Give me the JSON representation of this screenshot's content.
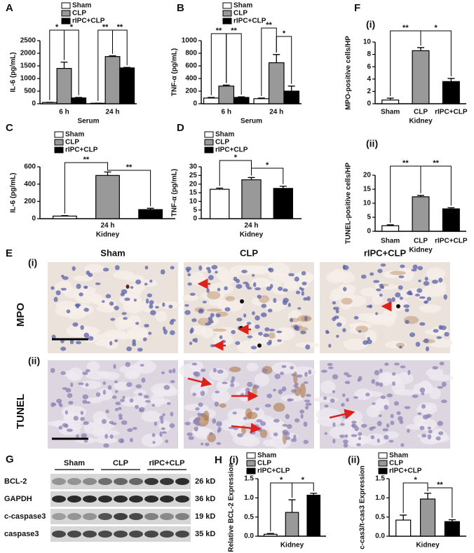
{
  "chart_data": [
    {
      "type": "bar",
      "panel": "A",
      "y_label": "IL-6 (pg/mL)",
      "x_label": "Serum",
      "categories": [
        "6 h",
        "24 h"
      ],
      "series": [
        {
          "name": "Sham",
          "color": "#ffffff",
          "values": [
            50,
            20
          ],
          "errors": [
            10,
            5
          ]
        },
        {
          "name": "CLP",
          "color": "#999999",
          "values": [
            1400,
            1870
          ],
          "errors": [
            250,
            30
          ]
        },
        {
          "name": "rIPC+CLP",
          "color": "#000000",
          "values": [
            230,
            1420
          ],
          "errors": [
            20,
            20
          ]
        }
      ],
      "ylim": [
        0,
        2500
      ],
      "yticks": [
        0,
        500,
        1000,
        1500,
        2000,
        2500
      ],
      "annotations": [
        "*",
        "*",
        "**",
        "**"
      ]
    },
    {
      "type": "bar",
      "panel": "B",
      "y_label": "TNF-α (pg/mL)",
      "x_label": "Serum",
      "categories": [
        "6 h",
        "24 h"
      ],
      "series": [
        {
          "name": "Sham",
          "color": "#ffffff",
          "values": [
            90,
            80
          ],
          "errors": [
            10,
            10
          ]
        },
        {
          "name": "CLP",
          "color": "#999999",
          "values": [
            280,
            650
          ],
          "errors": [
            15,
            130
          ]
        },
        {
          "name": "rIPC+CLP",
          "color": "#000000",
          "values": [
            100,
            200
          ],
          "errors": [
            10,
            80
          ]
        }
      ],
      "ylim": [
        0,
        1000
      ],
      "yticks": [
        0,
        200,
        400,
        600,
        800,
        1000
      ],
      "annotations": [
        "**",
        "**",
        "**",
        "*"
      ]
    },
    {
      "type": "bar",
      "panel": "C",
      "y_label": "IL-6 (pg/mL)",
      "x_label": "Kidney",
      "categories": [
        "24 h"
      ],
      "series": [
        {
          "name": "Sham",
          "color": "#ffffff",
          "values": [
            30
          ],
          "errors": [
            5
          ]
        },
        {
          "name": "CLP",
          "color": "#999999",
          "values": [
            500
          ],
          "errors": [
            40
          ]
        },
        {
          "name": "rIPC+CLP",
          "color": "#000000",
          "values": [
            105
          ],
          "errors": [
            15
          ]
        }
      ],
      "ylim": [
        0,
        600
      ],
      "yticks": [
        0,
        200,
        400,
        600
      ],
      "annotations": [
        "**",
        "**"
      ]
    },
    {
      "type": "bar",
      "panel": "D",
      "y_label": "TNF-α (pg/mL)",
      "x_label": "Kidney",
      "categories": [
        "24 h"
      ],
      "series": [
        {
          "name": "Sham",
          "color": "#ffffff",
          "values": [
            17
          ],
          "errors": [
            0.7
          ]
        },
        {
          "name": "CLP",
          "color": "#999999",
          "values": [
            22.5
          ],
          "errors": [
            1.3
          ]
        },
        {
          "name": "rIPC+CLP",
          "color": "#000000",
          "values": [
            17.5
          ],
          "errors": [
            1.3
          ]
        }
      ],
      "ylim": [
        0,
        30
      ],
      "yticks": [
        0,
        5,
        10,
        15,
        20,
        25,
        30
      ],
      "annotations": [
        "*",
        "*"
      ]
    },
    {
      "type": "bar",
      "panel": "F",
      "subpanel": "(i)",
      "y_label": "MPO-positive cells/HP",
      "x_label": "Kidney",
      "categories": [
        "Sham",
        "CLP",
        "rIPC+CLP"
      ],
      "values": [
        0.6,
        8.6,
        3.6
      ],
      "errors": [
        0.3,
        0.5,
        0.5
      ],
      "colors": [
        "#ffffff",
        "#999999",
        "#000000"
      ],
      "ylim": [
        0,
        10
      ],
      "yticks": [
        0,
        2,
        4,
        6,
        8,
        10
      ],
      "annotations": [
        "**",
        "*"
      ]
    },
    {
      "type": "bar",
      "subpanel": "(ii)",
      "y_label": "TUNEL-positive cells/HP",
      "x_label": "Kidney",
      "categories": [
        "Sham",
        "CLP",
        "rIPC+CLP"
      ],
      "values": [
        2,
        12.3,
        8
      ],
      "errors": [
        0.3,
        0.5,
        0.4
      ],
      "colors": [
        "#ffffff",
        "#999999",
        "#000000"
      ],
      "ylim": [
        0,
        20
      ],
      "yticks": [
        0,
        5,
        10,
        15,
        20
      ],
      "annotations": [
        "**",
        "**"
      ]
    },
    {
      "type": "bar",
      "panel": "H",
      "subpanel": "(i)",
      "y_label": "Relative BCL-2 Expression",
      "x_label": "Kidney",
      "categories": [
        null
      ],
      "series": [
        {
          "name": "Sham",
          "color": "#ffffff",
          "values": [
            0.05
          ],
          "errors": [
            0.02
          ]
        },
        {
          "name": "CLP",
          "color": "#999999",
          "values": [
            0.62
          ],
          "errors": [
            0.33
          ]
        },
        {
          "name": "rIPC+CLP",
          "color": "#000000",
          "values": [
            1.07
          ],
          "errors": [
            0.05
          ]
        }
      ],
      "ylim": [
        0,
        1.5
      ],
      "yticks": [
        {
          "value": 0,
          "label": "0.0"
        },
        0.5,
        {
          "value": 1,
          "label": "1.0"
        },
        1.5
      ],
      "annotations": [
        "*",
        "*"
      ]
    },
    {
      "type": "bar",
      "subpanel": "(ii)",
      "y_label": "c-cas3/t-cas3 Expression",
      "x_label": "Kidney",
      "categories": [
        null
      ],
      "series": [
        {
          "name": "Sham",
          "color": "#ffffff",
          "values": [
            0.42
          ],
          "errors": [
            0.13
          ]
        },
        {
          "name": "CLP",
          "color": "#999999",
          "values": [
            0.97
          ],
          "errors": [
            0.15
          ]
        },
        {
          "name": "rIPC+CLP",
          "color": "#000000",
          "values": [
            0.38
          ],
          "errors": [
            0.05
          ]
        }
      ],
      "ylim": [
        0,
        1.5
      ],
      "yticks": [
        {
          "value": 0,
          "label": "0.0"
        },
        0.5,
        {
          "value": 1,
          "label": "1.0"
        },
        1.5
      ],
      "annotations": [
        "*",
        "**"
      ]
    }
  ],
  "panel_e": {
    "label": "E",
    "columns": [
      "Sham",
      "CLP",
      "rIPC+CLP"
    ],
    "rows": [
      {
        "label": "(i)",
        "stain": "MPO"
      },
      {
        "label": "(ii)",
        "stain": "TUNEL"
      }
    ]
  },
  "panel_g": {
    "label": "G",
    "groups": [
      "Sham",
      "CLP",
      "rIPC+CLP"
    ],
    "rows": [
      {
        "protein": "BCL-2",
        "size": "26 kD"
      },
      {
        "protein": "GAPDH",
        "size": "36 kD"
      },
      {
        "protein": "c-caspase3",
        "size": "19 kD"
      },
      {
        "protein": "caspase3",
        "size": "35 kD"
      }
    ]
  }
}
